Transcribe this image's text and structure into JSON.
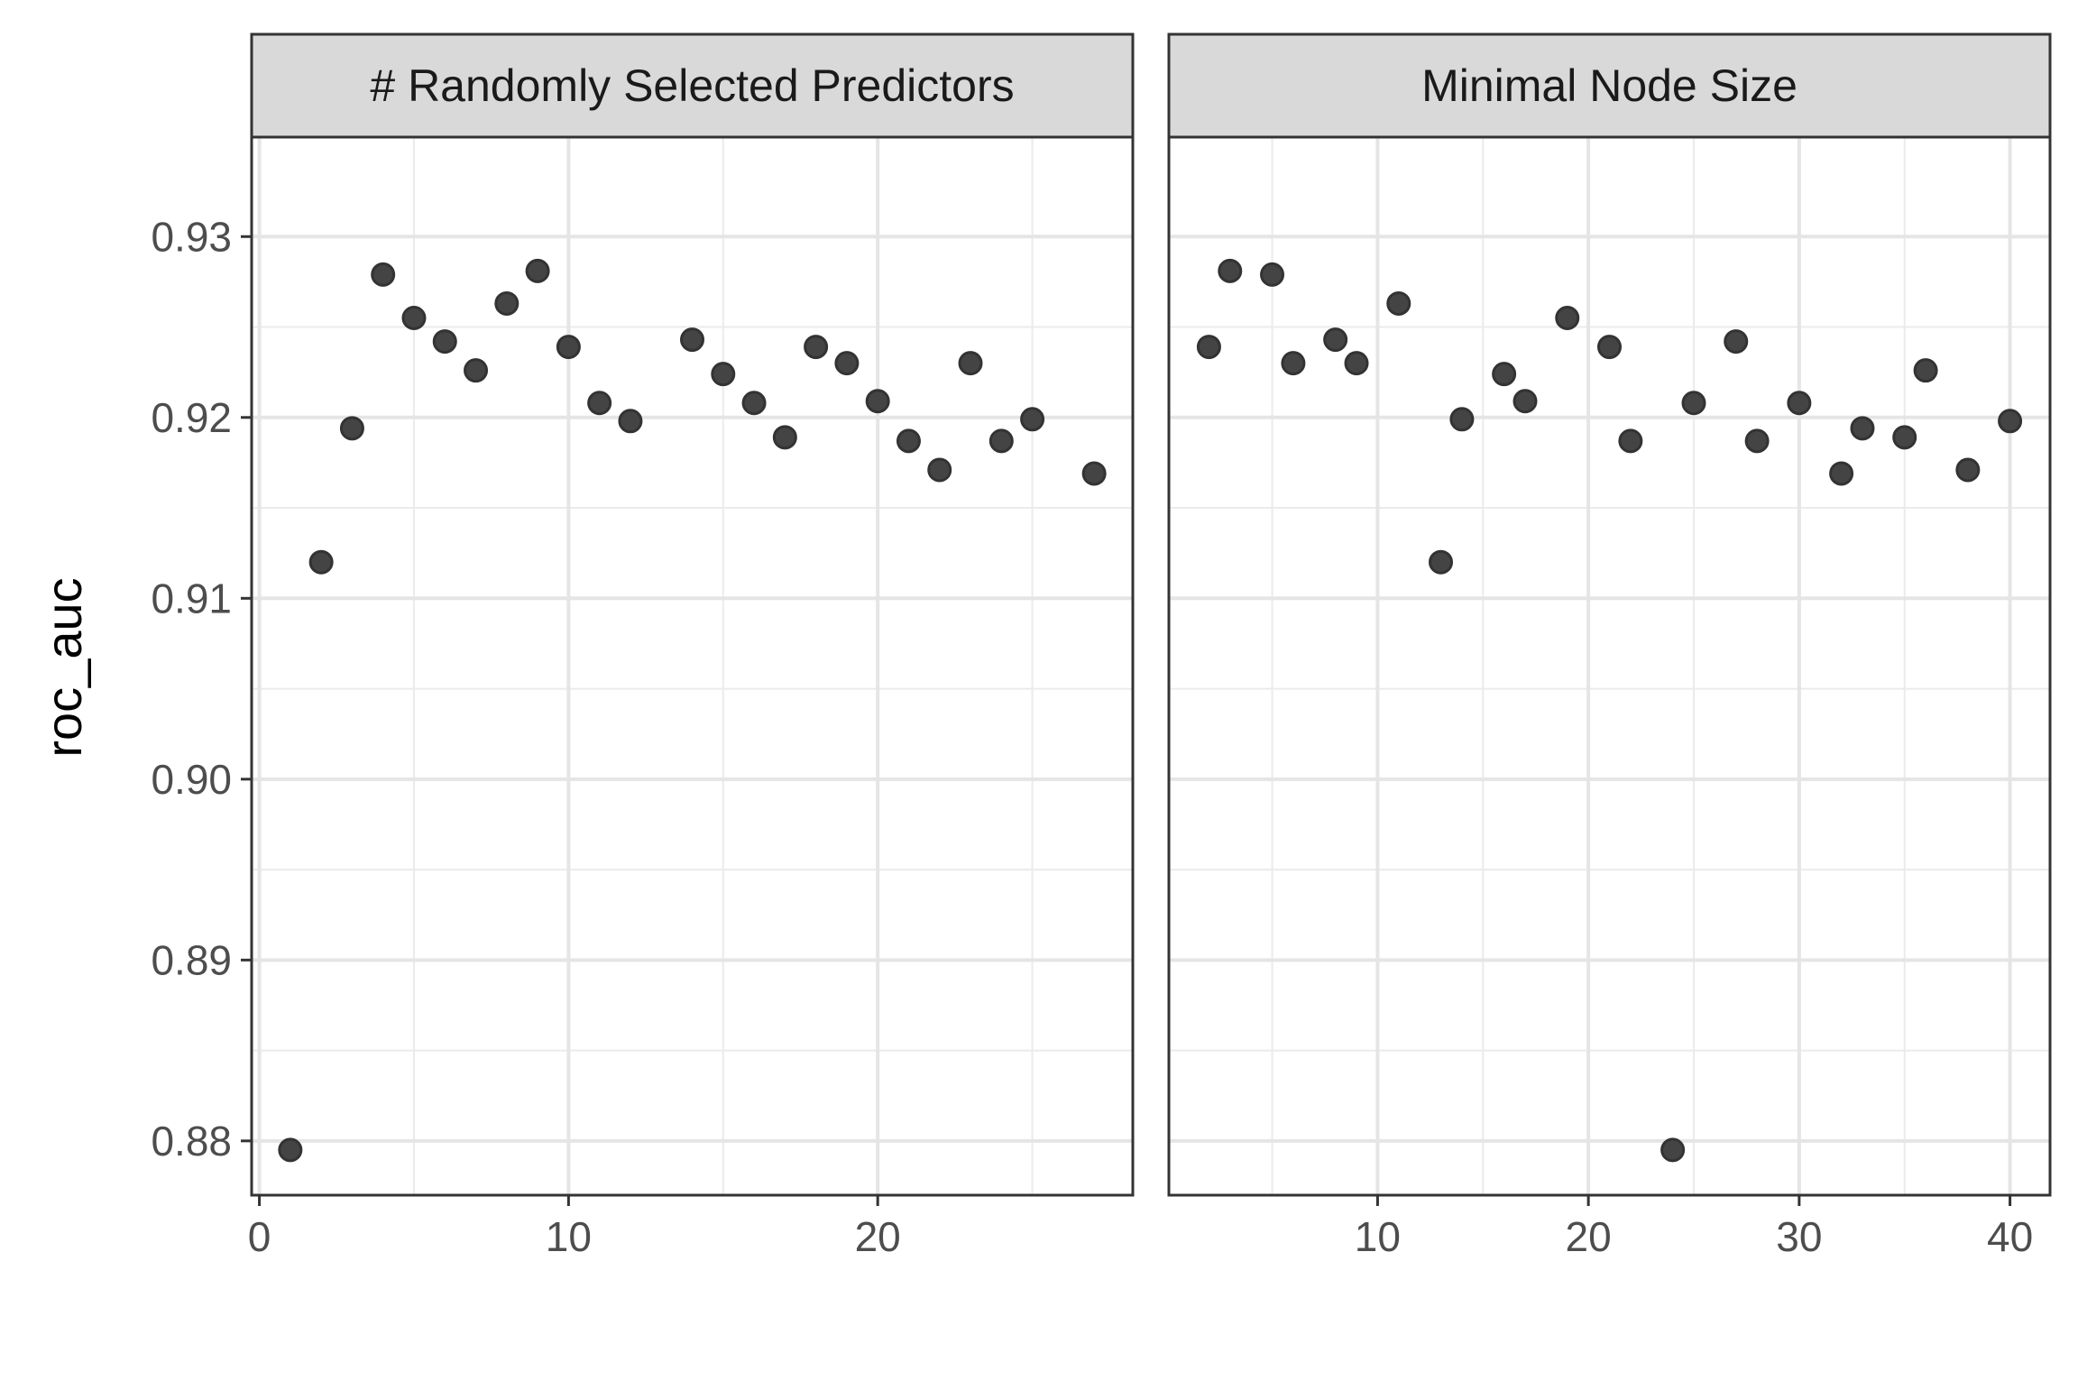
{
  "chart_data": {
    "type": "scatter",
    "ylabel": "roc_auc",
    "xlabel": "",
    "ylim": [
      0.877,
      0.9355
    ],
    "y_ticks": [
      0.88,
      0.89,
      0.9,
      0.91,
      0.92,
      0.93
    ],
    "y_tick_labels": [
      "0.88",
      "0.89",
      "0.90",
      "0.91",
      "0.92",
      "0.93"
    ],
    "grid": true,
    "point_color": "#333333",
    "point_fill": "#444444",
    "panels": [
      {
        "strip_label": "# Randomly Selected Predictors",
        "xlim": [
          -0.25,
          28.25
        ],
        "x_ticks": [
          0,
          10,
          20
        ],
        "x_tick_labels": [
          "0",
          "10",
          "20"
        ],
        "points": [
          {
            "x": 1,
            "y": 0.8795
          },
          {
            "x": 2,
            "y": 0.912
          },
          {
            "x": 3,
            "y": 0.9194
          },
          {
            "x": 4,
            "y": 0.9279
          },
          {
            "x": 5,
            "y": 0.9255
          },
          {
            "x": 6,
            "y": 0.9242
          },
          {
            "x": 7,
            "y": 0.9226
          },
          {
            "x": 8,
            "y": 0.9263
          },
          {
            "x": 9,
            "y": 0.9281
          },
          {
            "x": 10,
            "y": 0.9239
          },
          {
            "x": 11,
            "y": 0.9208
          },
          {
            "x": 12,
            "y": 0.9198
          },
          {
            "x": 14,
            "y": 0.9243
          },
          {
            "x": 15,
            "y": 0.9224
          },
          {
            "x": 16,
            "y": 0.9208
          },
          {
            "x": 17,
            "y": 0.9189
          },
          {
            "x": 18,
            "y": 0.9239
          },
          {
            "x": 19,
            "y": 0.923
          },
          {
            "x": 20,
            "y": 0.9209
          },
          {
            "x": 21,
            "y": 0.9187
          },
          {
            "x": 22,
            "y": 0.9171
          },
          {
            "x": 23,
            "y": 0.923
          },
          {
            "x": 24,
            "y": 0.9187
          },
          {
            "x": 25,
            "y": 0.9199
          },
          {
            "x": 27,
            "y": 0.9169
          }
        ]
      },
      {
        "strip_label": "Minimal Node Size",
        "xlim": [
          0.1,
          41.9
        ],
        "x_ticks": [
          10,
          20,
          30,
          40
        ],
        "x_tick_labels": [
          "10",
          "20",
          "30",
          "40"
        ],
        "points": [
          {
            "x": 2,
            "y": 0.9239
          },
          {
            "x": 3,
            "y": 0.9281
          },
          {
            "x": 5,
            "y": 0.9279
          },
          {
            "x": 6,
            "y": 0.923
          },
          {
            "x": 8,
            "y": 0.9243
          },
          {
            "x": 9,
            "y": 0.923
          },
          {
            "x": 11,
            "y": 0.9263
          },
          {
            "x": 13,
            "y": 0.912
          },
          {
            "x": 14,
            "y": 0.9199
          },
          {
            "x": 16,
            "y": 0.9224
          },
          {
            "x": 17,
            "y": 0.9209
          },
          {
            "x": 19,
            "y": 0.9255
          },
          {
            "x": 21,
            "y": 0.9239
          },
          {
            "x": 22,
            "y": 0.9187
          },
          {
            "x": 24,
            "y": 0.8795
          },
          {
            "x": 25,
            "y": 0.9208
          },
          {
            "x": 27,
            "y": 0.9242
          },
          {
            "x": 28,
            "y": 0.9187
          },
          {
            "x": 30,
            "y": 0.9208
          },
          {
            "x": 32,
            "y": 0.9169
          },
          {
            "x": 33,
            "y": 0.9194
          },
          {
            "x": 35,
            "y": 0.9189
          },
          {
            "x": 36,
            "y": 0.9226
          },
          {
            "x": 38,
            "y": 0.9171
          },
          {
            "x": 40,
            "y": 0.9198
          }
        ]
      }
    ]
  }
}
